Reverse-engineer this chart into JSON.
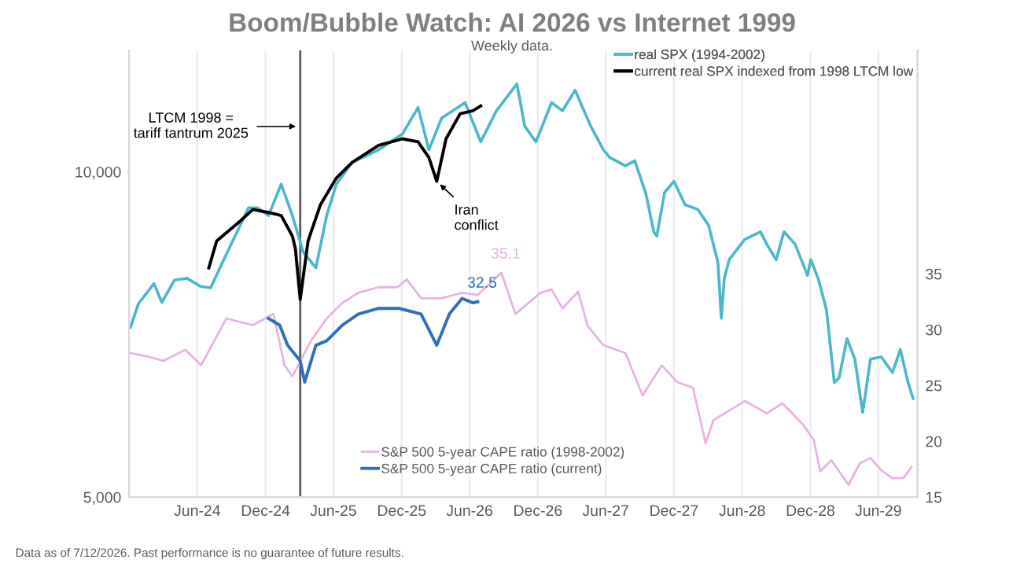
{
  "chart_data": {
    "type": "line",
    "title": "Boom/Bubble Watch: AI 2026 vs Internet 1999",
    "subtitle": "Weekly data.",
    "xlim": [
      "2023-12-01",
      "2029-09-14"
    ],
    "xticks": [
      {
        "value": "2024-06-01",
        "label": "Jun-24"
      },
      {
        "value": "2024-12-01",
        "label": "Dec-24"
      },
      {
        "value": "2025-06-01",
        "label": "Jun-25"
      },
      {
        "value": "2025-12-01",
        "label": "Dec-25"
      },
      {
        "value": "2026-06-01",
        "label": "Jun-26"
      },
      {
        "value": "2026-12-01",
        "label": "Dec-26"
      },
      {
        "value": "2027-06-01",
        "label": "Jun-27"
      },
      {
        "value": "2027-12-01",
        "label": "Dec-27"
      },
      {
        "value": "2028-06-01",
        "label": "Jun-28"
      },
      {
        "value": "2028-12-01",
        "label": "Dec-28"
      },
      {
        "value": "2029-06-01",
        "label": "Jun-29"
      }
    ],
    "log": "y",
    "ylim": [
      5000,
      12950
    ],
    "yticks": [
      {
        "value": 5000,
        "label": "5,000"
      },
      {
        "value": 10000,
        "label": "10,000"
      }
    ],
    "y2lim": [
      15,
      55
    ],
    "y2ticks": [
      15,
      20,
      25,
      30,
      35
    ],
    "grid": "x",
    "legend": "right",
    "series": [
      {
        "name": "real SPX (1994-2002)",
        "color": "#4bb8c9",
        "x": [
          "2023-12-05",
          "2023-12-26",
          "2024-02-06",
          "2024-02-27",
          "2024-04-01",
          "2024-05-04",
          "2024-06-11",
          "2024-07-07",
          "2024-08-05",
          "2024-09-16",
          "2024-10-16",
          "2024-11-10",
          "2024-12-09",
          "2025-01-12",
          "2025-02-11",
          "2025-03-12",
          "2025-04-15",
          "2025-05-14",
          "2025-06-09",
          "2025-07-21",
          "2025-09-30",
          "2025-12-03",
          "2026-01-14",
          "2026-02-12",
          "2026-03-18",
          "2026-05-20",
          "2026-07-01",
          "2026-08-12",
          "2026-10-06",
          "2026-10-27",
          "2026-11-26",
          "2027-01-07",
          "2027-02-05",
          "2027-03-11",
          "2027-04-22",
          "2027-05-26",
          "2027-06-12",
          "2027-07-24",
          "2027-08-18",
          "2027-09-17",
          "2027-10-08",
          "2027-10-16",
          "2027-11-06",
          "2027-12-01",
          "2027-12-31",
          "2028-02-03",
          "2028-03-03",
          "2028-03-28",
          "2028-04-06",
          "2028-04-14",
          "2028-04-27",
          "2028-06-08",
          "2028-07-20",
          "2028-08-06",
          "2028-08-31",
          "2028-09-21",
          "2028-10-21",
          "2028-11-23",
          "2028-12-02",
          "2028-12-23",
          "2029-01-13",
          "2029-02-03",
          "2029-02-16",
          "2029-03-09",
          "2029-03-30",
          "2029-04-20",
          "2029-05-11",
          "2029-06-09",
          "2029-07-09",
          "2029-07-30",
          "2029-08-20",
          "2029-09-02"
        ],
        "values": [
          7180,
          7550,
          7880,
          7570,
          7940,
          7970,
          7830,
          7810,
          8210,
          8800,
          9260,
          9260,
          9110,
          9740,
          9110,
          8430,
          8150,
          9110,
          9740,
          10200,
          10480,
          10840,
          11470,
          10480,
          11210,
          11590,
          10660,
          11390,
          12060,
          11020,
          10660,
          11590,
          11390,
          11900,
          11020,
          10480,
          10310,
          10130,
          10240,
          9540,
          8800,
          8720,
          9570,
          9800,
          9320,
          9230,
          8920,
          8240,
          7320,
          7970,
          8290,
          8660,
          8800,
          8570,
          8290,
          8800,
          8570,
          8020,
          8290,
          7940,
          7450,
          6380,
          6450,
          7010,
          6710,
          5990,
          6710,
          6740,
          6520,
          6850,
          6380,
          6170
        ]
      },
      {
        "name": "current real SPX indexed from 1998 LTCM low",
        "color": "#000000",
        "x": [
          "2024-07-02",
          "2024-07-23",
          "2024-09-25",
          "2024-10-28",
          "2024-12-09",
          "2025-01-12",
          "2025-02-11",
          "2025-02-19",
          "2025-03-04",
          "2025-03-25",
          "2025-04-27",
          "2025-06-09",
          "2025-07-21",
          "2025-09-30",
          "2025-12-03",
          "2026-01-14",
          "2026-02-12",
          "2026-03-05",
          "2026-03-30",
          "2026-05-07",
          "2026-06-10",
          "2026-07-01"
        ],
        "values": [
          8150,
          8630,
          9010,
          9230,
          9170,
          9110,
          8720,
          8490,
          7620,
          8630,
          9320,
          9870,
          10200,
          10580,
          10730,
          10660,
          10310,
          9800,
          10730,
          11320,
          11390,
          11510
        ]
      },
      {
        "name": "S&P 500 5-year CAPE ratio (1998-2002)",
        "color": "#e7b3e3",
        "axis": "y2",
        "x": [
          "2023-12-05",
          "2024-01-20",
          "2024-03-02",
          "2024-04-30",
          "2024-06-11",
          "2024-08-18",
          "2024-10-28",
          "2024-12-22",
          "2025-01-21",
          "2025-02-11",
          "2025-04-02",
          "2025-05-14",
          "2025-06-25",
          "2025-08-07",
          "2025-09-30",
          "2025-11-20",
          "2025-12-15",
          "2026-01-22",
          "2026-03-18",
          "2026-05-12",
          "2026-06-23",
          "2026-08-25",
          "2026-10-02",
          "2026-12-08",
          "2027-01-07",
          "2027-02-05",
          "2027-03-19",
          "2027-04-14",
          "2027-05-26",
          "2027-07-24",
          "2027-09-08",
          "2027-10-29",
          "2027-12-10",
          "2028-01-21",
          "2028-02-24",
          "2028-03-16",
          "2028-06-08",
          "2028-08-06",
          "2028-09-17",
          "2028-11-11",
          "2028-12-10",
          "2028-12-27",
          "2029-01-26",
          "2029-03-13",
          "2029-04-12",
          "2029-05-11",
          "2029-06-09",
          "2029-07-09",
          "2029-08-07",
          "2029-08-29"
        ],
        "values": [
          27.9,
          27.6,
          27.2,
          28.2,
          26.8,
          31.0,
          30.4,
          31.4,
          26.8,
          25.8,
          29.0,
          31.0,
          32.4,
          33.3,
          33.8,
          33.8,
          34.5,
          32.8,
          32.8,
          33.3,
          33.1,
          35.1,
          31.4,
          33.3,
          33.6,
          31.9,
          33.4,
          30.3,
          28.6,
          27.9,
          24.1,
          26.8,
          25.3,
          24.8,
          19.8,
          21.9,
          23.6,
          22.5,
          23.4,
          21.5,
          20.1,
          17.3,
          18.3,
          16.1,
          18.0,
          18.5,
          17.4,
          16.7,
          16.7,
          17.7
        ],
        "value_labels": [
          null,
          null,
          null,
          null,
          null,
          null,
          null,
          null,
          null,
          null,
          null,
          null,
          null,
          null,
          null,
          null,
          null,
          null,
          null,
          null,
          null,
          "35.1",
          null,
          null,
          null,
          null,
          null,
          null,
          null,
          null,
          null,
          null,
          null,
          null,
          null,
          null,
          null,
          null,
          null,
          null,
          null,
          null,
          null,
          null,
          null,
          null,
          null,
          null,
          null,
          null
        ]
      },
      {
        "name": "S&P 500 5-year CAPE ratio (current)",
        "color": "#2e6fbd",
        "axis": "y2",
        "x": [
          "2024-12-09",
          "2025-01-08",
          "2025-01-29",
          "2025-03-04",
          "2025-03-16",
          "2025-04-15",
          "2025-05-14",
          "2025-06-25",
          "2025-08-07",
          "2025-09-30",
          "2025-11-24",
          "2026-01-22",
          "2026-03-05",
          "2026-04-08",
          "2026-05-12",
          "2026-06-10",
          "2026-06-23"
        ],
        "values": [
          31.0,
          30.4,
          28.6,
          27.2,
          25.3,
          28.6,
          29.0,
          30.4,
          31.4,
          31.9,
          31.9,
          31.4,
          28.6,
          31.4,
          32.8,
          32.4,
          32.5
        ],
        "value_labels": [
          null,
          null,
          null,
          null,
          null,
          null,
          null,
          null,
          null,
          null,
          null,
          null,
          null,
          null,
          null,
          null,
          "32.5"
        ]
      }
    ],
    "ref_lines": [
      {
        "axis": "x",
        "value": "2025-03-04",
        "label": "LTCM 1998 =\ntariff tantrum 2025",
        "color": "#595959"
      }
    ],
    "annotations": [
      {
        "text": "Iran\nconflict",
        "x": "2026-03-05",
        "y": 9800
      },
      "Data as of 7/12/2026. Past performance is no guarantee of future results."
    ]
  }
}
